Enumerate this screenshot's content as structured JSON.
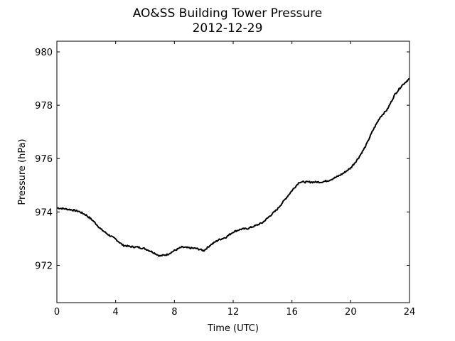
{
  "chart_data": {
    "type": "line",
    "title": "AO&SS Building Tower Pressure",
    "subtitle": "2012-12-29",
    "xlabel": "Time (UTC)",
    "ylabel": "Pressure (hPa)",
    "xlim": [
      0,
      24
    ],
    "ylim": [
      970.6,
      980.4
    ],
    "x_ticks": [
      0,
      4,
      8,
      12,
      16,
      20,
      24
    ],
    "y_ticks": [
      972,
      974,
      976,
      978,
      980
    ],
    "grid": false,
    "line_color": "#000000",
    "series": [
      {
        "x": [
          0,
          0.5,
          1,
          1.5,
          2,
          2.5,
          3,
          3.5,
          4,
          4.5,
          5,
          5.5,
          6,
          6.5,
          7,
          7.5,
          8,
          8.5,
          9,
          9.5,
          10,
          10.5,
          11,
          11.5,
          12,
          12.5,
          13,
          13.5,
          14,
          14.5,
          15,
          15.5,
          16,
          16.5,
          17,
          17.5,
          18,
          18.5,
          19,
          19.5,
          20,
          20.5,
          21,
          21.5,
          22,
          22.5,
          23,
          23.5,
          24
        ],
        "y": [
          974.15,
          974.12,
          974.08,
          974.02,
          973.88,
          973.65,
          973.35,
          973.15,
          972.98,
          972.75,
          972.7,
          972.68,
          972.62,
          972.5,
          972.35,
          972.4,
          972.55,
          972.68,
          972.65,
          972.63,
          972.55,
          972.78,
          972.95,
          973.05,
          973.25,
          973.35,
          973.38,
          973.48,
          973.6,
          973.85,
          974.1,
          974.45,
          974.8,
          975.12,
          975.12,
          975.12,
          975.12,
          975.18,
          975.3,
          975.45,
          975.65,
          976.0,
          976.45,
          977.05,
          977.55,
          977.85,
          978.4,
          978.75,
          979.0
        ]
      }
    ]
  }
}
